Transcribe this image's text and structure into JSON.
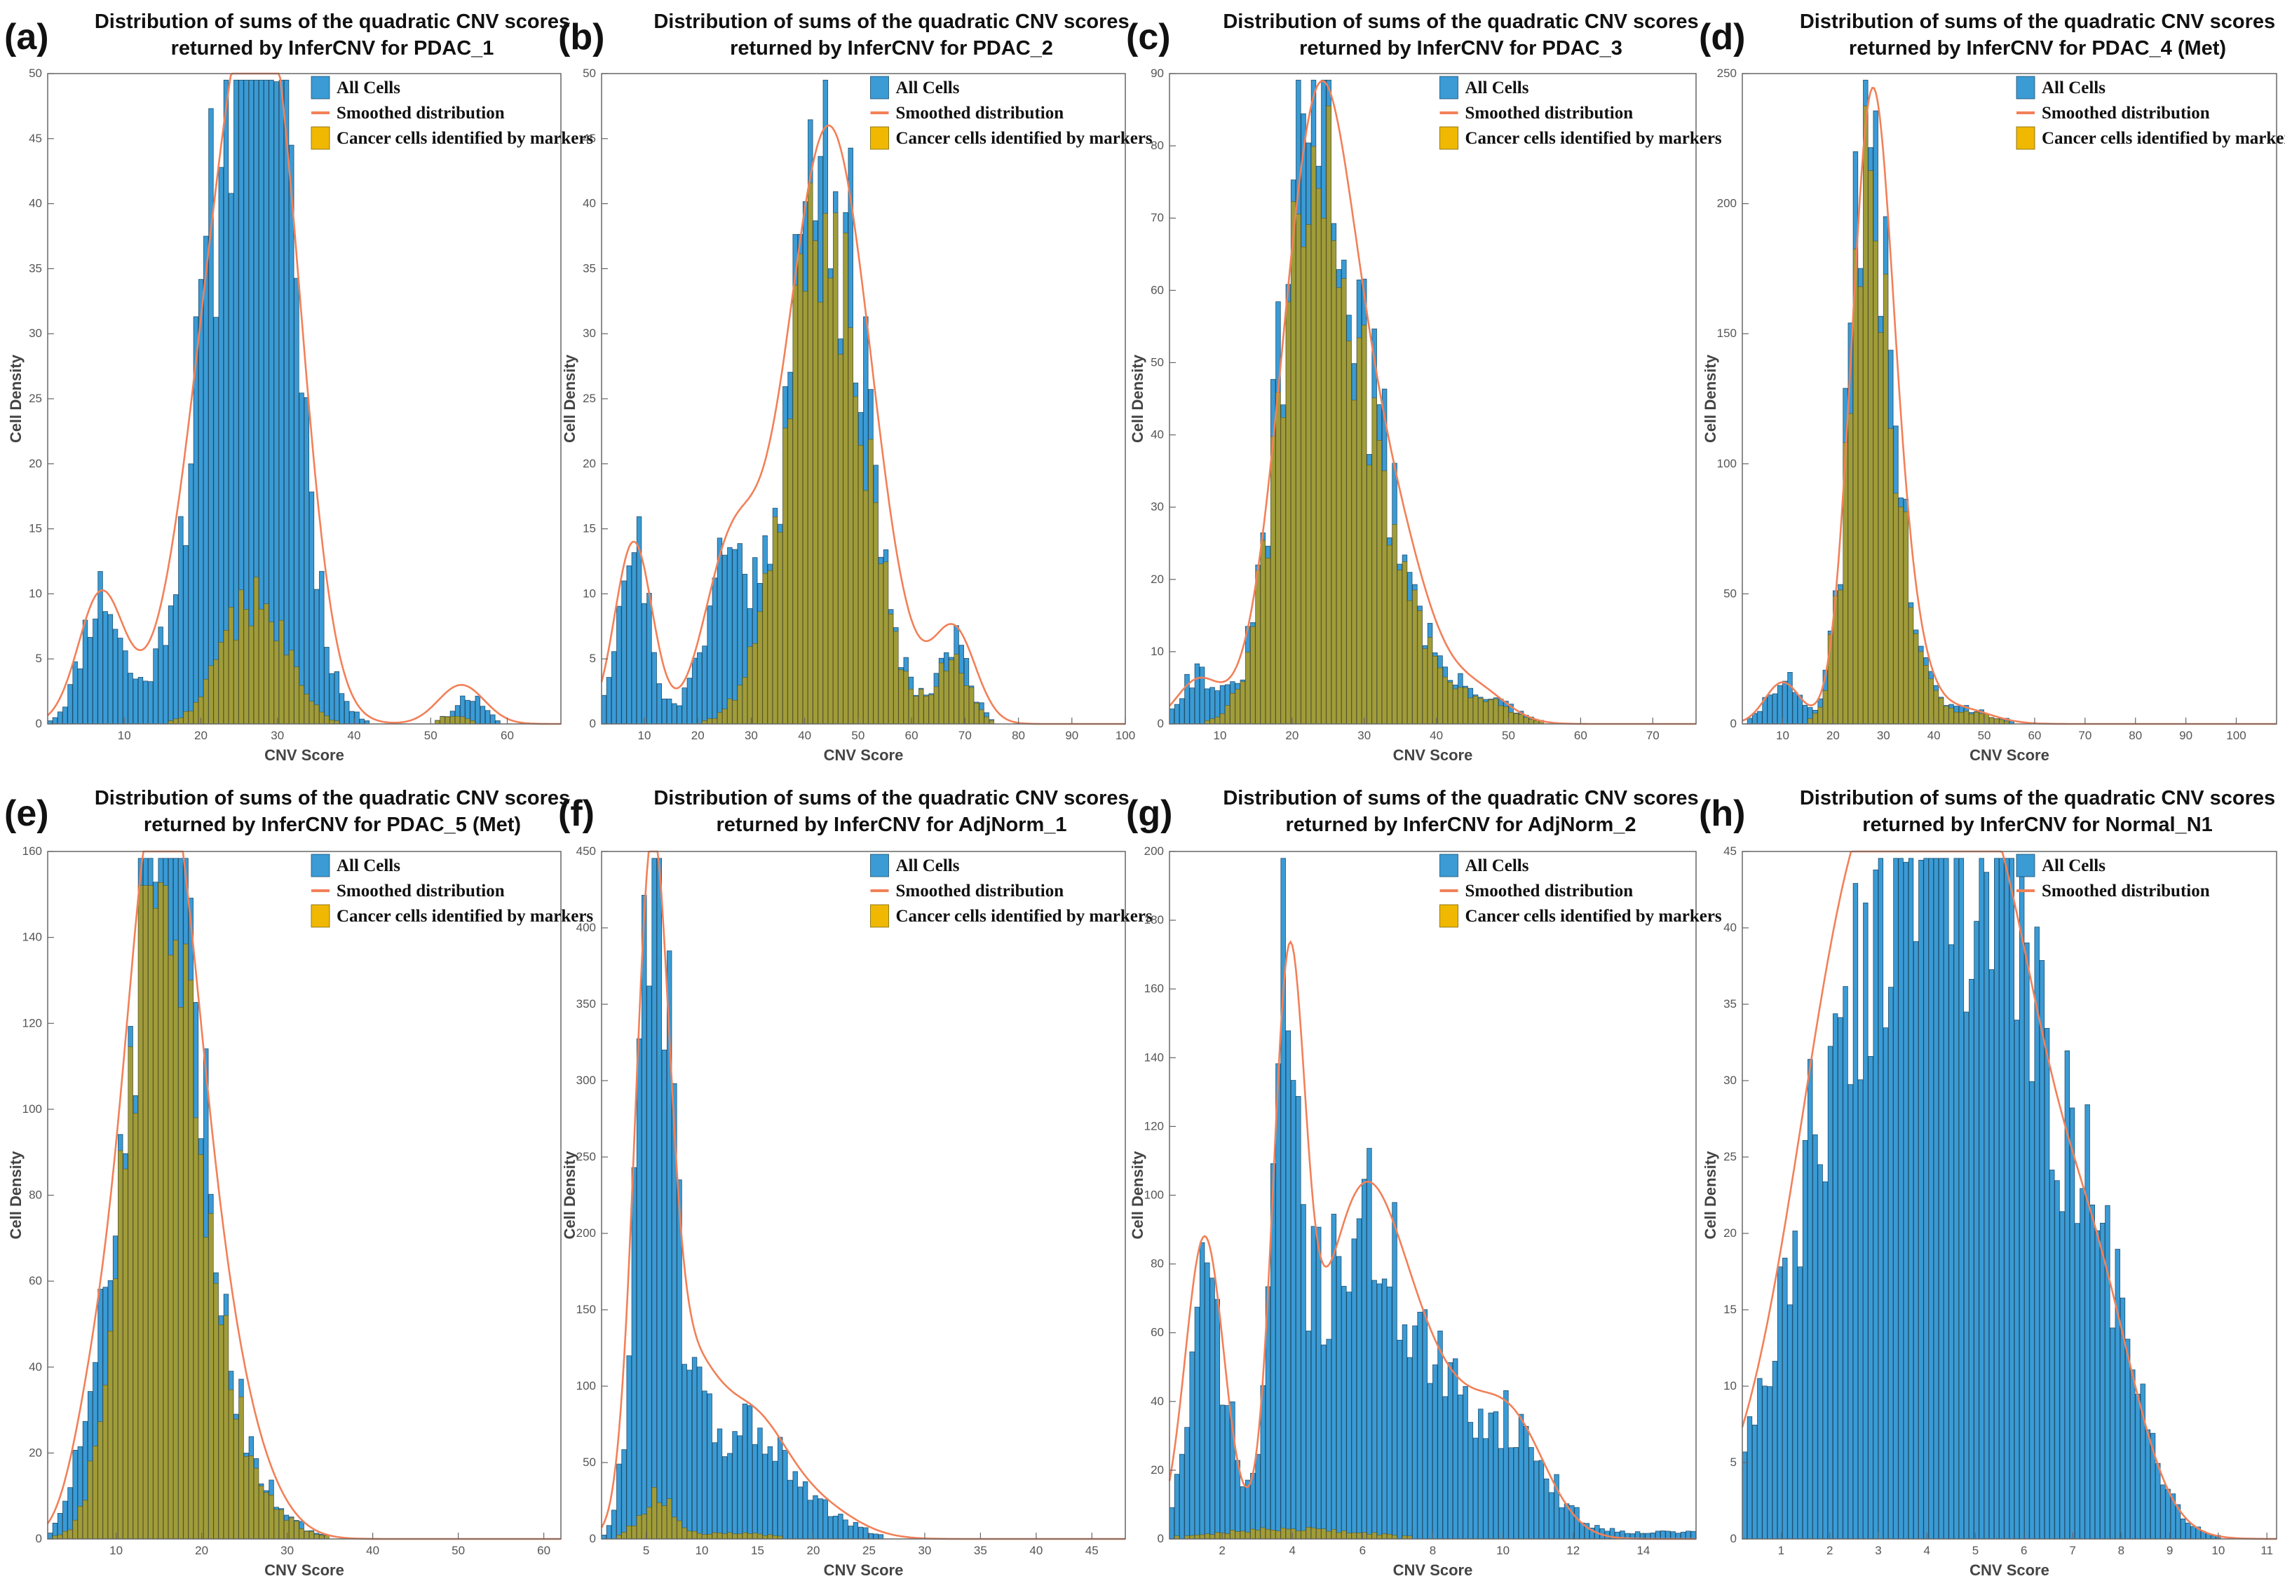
{
  "figure": {
    "colors": {
      "all_cells": "#3a9bd5",
      "cancer": "#a99c2c",
      "cancer_legend": "#f0b800",
      "smoothed": "#f28058",
      "axis": "#666666",
      "bar_edge": "#1f4f6e"
    }
  },
  "chart_data": [
    {
      "type": "bar",
      "letter": "(a)",
      "title_line1": "Distribution of sums of the quadratic CNV scores",
      "title_line2": "returned by InferCNV for PDAC_1",
      "xlabel": "CNV Score",
      "ylabel": "Cell Density",
      "xlim": [
        0,
        67
      ],
      "ylim": [
        0,
        50
      ],
      "xticks": [
        10,
        20,
        30,
        40,
        50,
        60
      ],
      "yticks": [
        0,
        5,
        10,
        15,
        20,
        25,
        30,
        35,
        40,
        45,
        50
      ],
      "legend": [
        "All Cells",
        "Smoothed distribution",
        "Cancer cells identified by markers"
      ],
      "all_peaks": [
        [
          7,
          10,
          2.5
        ],
        [
          25,
          44,
          5.2
        ],
        [
          29,
          34,
          3.5
        ],
        [
          55,
          2,
          2
        ]
      ],
      "all_floor": 0,
      "all_seed": 11,
      "cancer_peaks": [
        [
          27,
          10,
          4
        ],
        [
          50,
          1.2,
          3
        ]
      ],
      "cancer_seed": 12,
      "smooth_peaks": [
        [
          7,
          10,
          3
        ],
        [
          24.5,
          42,
          5.5
        ],
        [
          30,
          26,
          4
        ],
        [
          54,
          3,
          3
        ]
      ]
    },
    {
      "type": "bar",
      "letter": "(b)",
      "title_line1": "Distribution of sums of the quadratic CNV scores",
      "title_line2": "returned by InferCNV for PDAC_2",
      "xlabel": "CNV Score",
      "ylabel": "Cell Density",
      "xlim": [
        2,
        100
      ],
      "ylim": [
        0,
        50
      ],
      "xticks": [
        10,
        20,
        30,
        40,
        50,
        60,
        70,
        80,
        90,
        100
      ],
      "yticks": [
        0,
        5,
        10,
        15,
        20,
        25,
        30,
        35,
        40,
        45,
        50
      ],
      "legend": [
        "All Cells",
        "Smoothed distribution",
        "Cancer cells identified by markers"
      ],
      "all_peaks": [
        [
          8,
          14,
          3
        ],
        [
          25,
          12,
          4
        ],
        [
          44,
          44,
          7
        ],
        [
          68,
          6,
          3
        ]
      ],
      "all_floor": 0,
      "all_seed": 21,
      "cancer_peaks": [
        [
          44,
          42,
          7
        ],
        [
          68,
          5,
          3
        ]
      ],
      "cancer_seed": 22,
      "smooth_peaks": [
        [
          8,
          14,
          3.5
        ],
        [
          26,
          12,
          5
        ],
        [
          44.5,
          46,
          8
        ],
        [
          68,
          7,
          4
        ]
      ]
    },
    {
      "type": "bar",
      "letter": "(c)",
      "title_line1": "Distribution of sums of the quadratic CNV scores",
      "title_line2": "returned by InferCNV for PDAC_3",
      "xlabel": "CNV Score",
      "ylabel": "Cell Density",
      "xlim": [
        3,
        76
      ],
      "ylim": [
        0,
        90
      ],
      "xticks": [
        10,
        20,
        30,
        40,
        50,
        60,
        70
      ],
      "yticks": [
        0,
        10,
        20,
        30,
        40,
        50,
        60,
        70,
        80,
        90
      ],
      "legend": [
        "All Cells",
        "Smoothed distribution",
        "Cancer cells identified by markers"
      ],
      "all_peaks": [
        [
          7,
          7,
          2.5
        ],
        [
          23,
          82,
          4.5
        ],
        [
          32,
          30,
          5
        ],
        [
          46,
          4,
          4
        ]
      ],
      "all_floor": 0,
      "all_seed": 31,
      "cancer_peaks": [
        [
          23,
          80,
          4.5
        ],
        [
          32,
          28,
          5
        ],
        [
          46,
          3.5,
          4
        ]
      ],
      "cancer_seed": 32,
      "smooth_peaks": [
        [
          7,
          6,
          3
        ],
        [
          23.5,
          82,
          5
        ],
        [
          33,
          28,
          5.5
        ],
        [
          46,
          4,
          4
        ]
      ]
    },
    {
      "type": "bar",
      "letter": "(d)",
      "title_line1": "Distribution of sums of the quadratic CNV scores",
      "title_line2": "returned by InferCNV for PDAC_4 (Met)",
      "xlabel": "CNV Score",
      "ylabel": "Cell Density",
      "xlim": [
        2,
        108
      ],
      "ylim": [
        0,
        250
      ],
      "xticks": [
        10,
        20,
        30,
        40,
        50,
        60,
        70,
        80,
        90,
        100
      ],
      "yticks": [
        0,
        50,
        100,
        150,
        200,
        250
      ],
      "legend": [
        "All Cells",
        "Smoothed distribution",
        "Cancer cells identified by markers"
      ],
      "all_peaks": [
        [
          10,
          18,
          3
        ],
        [
          27,
          222,
          3.7
        ],
        [
          33,
          45,
          4
        ],
        [
          45,
          6,
          6
        ]
      ],
      "all_floor": 0,
      "all_seed": 41,
      "cancer_peaks": [
        [
          27,
          218,
          3.7
        ],
        [
          33,
          44,
          4
        ],
        [
          45,
          5,
          6
        ]
      ],
      "cancer_seed": 42,
      "smooth_peaks": [
        [
          10,
          16,
          3.5
        ],
        [
          27.5,
          222,
          4
        ],
        [
          33,
          45,
          4.5
        ],
        [
          45,
          6,
          6
        ]
      ]
    },
    {
      "type": "bar",
      "letter": "(e)",
      "title_line1": "Distribution of sums of the quadratic CNV scores",
      "title_line2": "returned by InferCNV for PDAC_5 (Met)",
      "xlabel": "CNV Score",
      "ylabel": "Cell Density",
      "xlim": [
        2,
        62
      ],
      "ylim": [
        0,
        160
      ],
      "xticks": [
        10,
        20,
        30,
        40,
        50,
        60
      ],
      "yticks": [
        0,
        20,
        40,
        60,
        80,
        100,
        120,
        140,
        160
      ],
      "legend": [
        "All Cells",
        "Smoothed distribution",
        "Cancer cells identified by markers"
      ],
      "all_peaks": [
        [
          7,
          20,
          2
        ],
        [
          14.5,
          145,
          3.5
        ],
        [
          19,
          60,
          4
        ],
        [
          26,
          8,
          4
        ]
      ],
      "all_floor": 0,
      "all_seed": 51,
      "cancer_peaks": [
        [
          14.5,
          140,
          3.5
        ],
        [
          19,
          58,
          4
        ],
        [
          26,
          7,
          4
        ]
      ],
      "cancer_seed": 52,
      "smooth_peaks": [
        [
          7,
          18,
          2.5
        ],
        [
          14.5,
          145,
          4
        ],
        [
          19.5,
          60,
          4.5
        ],
        [
          26,
          8,
          4
        ]
      ]
    },
    {
      "type": "bar",
      "letter": "(f)",
      "title_line1": "Distribution of sums of the quadratic CNV scores",
      "title_line2": "returned by InferCNV for AdjNorm_1",
      "xlabel": "CNV Score",
      "ylabel": "Cell Density",
      "xlim": [
        1,
        48
      ],
      "ylim": [
        0,
        450
      ],
      "xticks": [
        5,
        10,
        15,
        20,
        25,
        30,
        35,
        40,
        45
      ],
      "yticks": [
        0,
        50,
        100,
        150,
        200,
        250,
        300,
        350,
        400,
        450
      ],
      "legend": [
        "All Cells",
        "Smoothed distribution",
        "Cancer cells identified by markers"
      ],
      "all_peaks": [
        [
          5.5,
          420,
          1.3
        ],
        [
          8,
          120,
          2.2
        ],
        [
          14.5,
          70,
          2.5
        ],
        [
          20,
          20,
          3
        ]
      ],
      "all_floor": 0,
      "all_seed": 61,
      "cancer_peaks": [
        [
          6,
          28,
          1.5
        ],
        [
          13,
          4,
          3
        ]
      ],
      "cancer_seed": 62,
      "smooth_peaks": [
        [
          5.5,
          400,
          1.5
        ],
        [
          8.5,
          110,
          2.8
        ],
        [
          14.5,
          70,
          3
        ],
        [
          20,
          22,
          3.5
        ]
      ]
    },
    {
      "type": "bar",
      "letter": "(g)",
      "title_line1": "Distribution of sums of the quadratic CNV scores",
      "title_line2": "returned by InferCNV for AdjNorm_2",
      "xlabel": "CNV Score",
      "ylabel": "Cell Density",
      "xlim": [
        0.5,
        15.5
      ],
      "ylim": [
        0,
        200
      ],
      "xticks": [
        2,
        4,
        6,
        8,
        10,
        12,
        14
      ],
      "yticks": [
        0,
        20,
        40,
        60,
        80,
        100,
        120,
        140,
        160,
        180,
        200
      ],
      "legend": [
        "All Cells",
        "Smoothed distribution",
        "Cancer cells identified by markers"
      ],
      "all_peaks": [
        [
          1.6,
          70,
          0.5
        ],
        [
          3.8,
          130,
          0.35
        ],
        [
          5.5,
          70,
          1.3
        ],
        [
          7.5,
          40,
          1.5
        ],
        [
          10.3,
          25,
          1
        ]
      ],
      "all_floor": 2,
      "all_seed": 71,
      "cancer_peaks": [
        [
          4,
          3,
          2
        ]
      ],
      "cancer_seed": 72,
      "smooth_peaks": [
        [
          1.5,
          88,
          0.55
        ],
        [
          3.9,
          150,
          0.45
        ],
        [
          5.9,
          90,
          1.2
        ],
        [
          8,
          38,
          1.4
        ],
        [
          10.3,
          28,
          1
        ]
      ]
    },
    {
      "type": "bar",
      "letter": "(h)",
      "title_line1": "Distribution of sums of the quadratic CNV scores",
      "title_line2": "returned by InferCNV for Normal_N1",
      "xlabel": "CNV Score",
      "ylabel": "Cell Density",
      "xlim": [
        0.2,
        11.2
      ],
      "ylim": [
        0,
        45
      ],
      "xticks": [
        1,
        2,
        3,
        4,
        5,
        6,
        7,
        8,
        9,
        10,
        11
      ],
      "yticks": [
        0,
        5,
        10,
        15,
        20,
        25,
        30,
        35,
        40,
        45
      ],
      "legend": [
        "All Cells",
        "Smoothed distribution"
      ],
      "all_peaks": [
        [
          2.8,
          34,
          1.4
        ],
        [
          5.3,
          38,
          1.4
        ],
        [
          7.5,
          10,
          0.8
        ]
      ],
      "all_floor": 0,
      "all_seed": 81,
      "cancer_peaks": [],
      "cancer_seed": 82,
      "smooth_peaks": [
        [
          2.6,
          40,
          1.3
        ],
        [
          5.2,
          43,
          1.35
        ],
        [
          7.6,
          10,
          0.8
        ]
      ]
    }
  ]
}
